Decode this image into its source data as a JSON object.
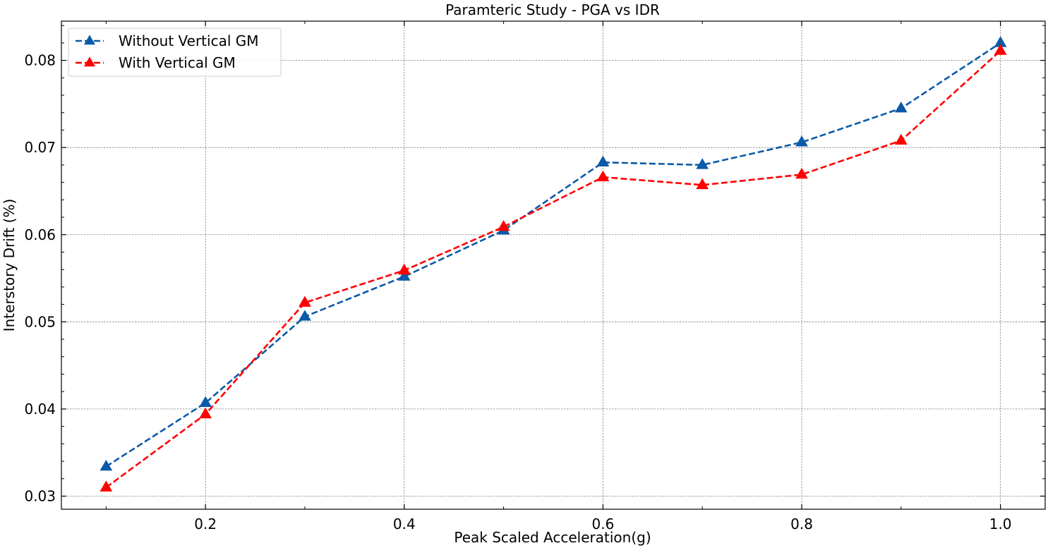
{
  "chart_data": {
    "type": "line",
    "title": "Paramteric Study - PGA vs IDR",
    "xlabel": "Peak Scaled Acceleration(g)",
    "ylabel": "Interstory Drift (%)",
    "xlim": [
      0.055,
      1.045
    ],
    "ylim": [
      0.0285,
      0.0845
    ],
    "x_ticks": [
      0.2,
      0.4,
      0.6,
      0.8,
      1.0
    ],
    "x_tick_labels": [
      "0.2",
      "0.4",
      "0.6",
      "0.8",
      "1.0"
    ],
    "y_ticks": [
      0.03,
      0.04,
      0.05,
      0.06,
      0.07,
      0.08
    ],
    "y_tick_labels": [
      "0.03",
      "0.04",
      "0.05",
      "0.06",
      "0.07",
      "0.08"
    ],
    "grid": true,
    "legend_position": "top-left",
    "x": [
      0.1,
      0.2,
      0.3,
      0.4,
      0.5,
      0.6,
      0.7,
      0.8,
      0.9,
      1.0
    ],
    "series": [
      {
        "name": "Without Vertical GM",
        "color": "#0b5aa8",
        "marker": "triangle",
        "line_style": "dashed",
        "values": [
          0.0334,
          0.0407,
          0.0506,
          0.0552,
          0.0605,
          0.0683,
          0.068,
          0.0706,
          0.0745,
          0.082
        ]
      },
      {
        "name": "With Vertical GM",
        "color": "#ff0000",
        "marker": "triangle",
        "line_style": "dashed",
        "values": [
          0.031,
          0.0394,
          0.0522,
          0.0559,
          0.0609,
          0.0666,
          0.0657,
          0.0669,
          0.0708,
          0.0811
        ]
      }
    ]
  }
}
